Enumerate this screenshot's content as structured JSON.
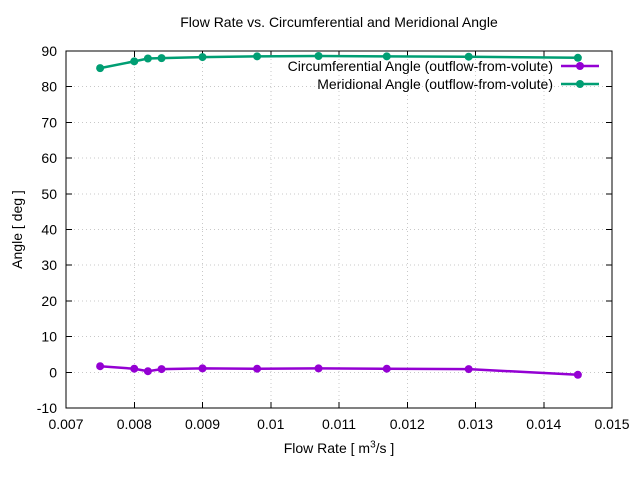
{
  "chart_data": {
    "type": "line",
    "title": "Flow Rate vs. Circumferential and Meridional Angle",
    "xlabel_prefix": "Flow Rate [ m",
    "xlabel_sup": "3",
    "xlabel_suffix": "/s ]",
    "ylabel": "Angle [ deg ]",
    "xlim": [
      0.007,
      0.015
    ],
    "ylim": [
      -10,
      90
    ],
    "x_ticks": [
      0.007,
      0.008,
      0.009,
      0.01,
      0.011,
      0.012,
      0.013,
      0.014,
      0.015
    ],
    "x_tick_labels": [
      "0.007",
      "0.008",
      "0.009",
      "0.01",
      "0.011",
      "0.012",
      "0.013",
      "0.014",
      "0.015"
    ],
    "y_ticks": [
      -10,
      0,
      10,
      20,
      30,
      40,
      50,
      60,
      70,
      80,
      90
    ],
    "grid": true,
    "legend_position": "inside-top-right",
    "x": [
      0.0075,
      0.008,
      0.0082,
      0.0084,
      0.009,
      0.0098,
      0.0107,
      0.0117,
      0.0129,
      0.0145
    ],
    "series": [
      {
        "id": "circumferential",
        "name": "Circumferential Angle (outflow-from-volute)",
        "color": "#9400d3",
        "marker": "filled-circle",
        "values": [
          1.7,
          1.0,
          0.3,
          0.9,
          1.1,
          1.0,
          1.1,
          1.0,
          0.9,
          -0.7
        ]
      },
      {
        "id": "meridional",
        "name": "Meridional Angle (outflow-from-volute)",
        "color": "#009e73",
        "marker": "filled-circle",
        "values": [
          85.2,
          87.1,
          87.9,
          88.0,
          88.3,
          88.5,
          88.6,
          88.5,
          88.4,
          88.1
        ]
      }
    ]
  }
}
